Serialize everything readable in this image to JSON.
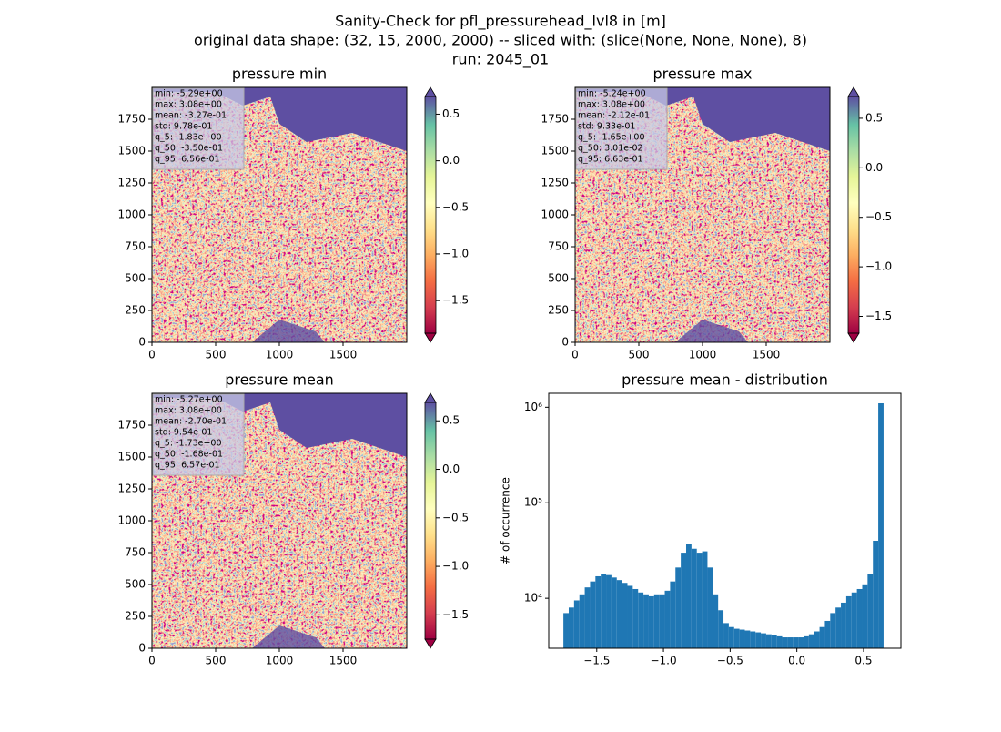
{
  "title": [
    "Sanity-Check for pfl_pressurehead_lvl8 in [m]",
    "original data shape: (32, 15, 2000, 2000) -- sliced with: (slice(None, None, None), 8)",
    "run: 2045_01"
  ],
  "chart_data": [
    {
      "type": "image",
      "title": "pressure min",
      "xlim": [
        0,
        2000
      ],
      "ylim": [
        0,
        2000
      ],
      "xticks": [
        0,
        500,
        1000,
        1500
      ],
      "yticks": [
        0,
        250,
        500,
        750,
        1000,
        1250,
        1500,
        1750
      ],
      "stats": [
        "min: -5.29e+00",
        "max: 3.08e+00",
        "mean: -3.27e-01",
        "std: 9.78e-01",
        "q_5: -1.83e+00",
        "q_50: -3.50e-01",
        "q_95: 6.56e-01"
      ],
      "clim": [
        -1.85,
        0.69
      ],
      "cticks": [
        0.5,
        {
          "value": 0,
          "label": "0.0"
        },
        {
          "value": -0.5,
          "label": "−0.5"
        },
        {
          "value": -1,
          "label": "−1.0"
        },
        {
          "value": -1.5,
          "label": "−1.5"
        }
      ]
    },
    {
      "type": "image",
      "title": "pressure max",
      "xlim": [
        0,
        2000
      ],
      "ylim": [
        0,
        2000
      ],
      "xticks": [
        0,
        500,
        1000,
        1500
      ],
      "yticks": [
        0,
        250,
        500,
        750,
        1000,
        1250,
        1500,
        1750
      ],
      "stats": [
        "min: -5.24e+00",
        "max: 3.08e+00",
        "mean: -2.12e-01",
        "std: 9.33e-01",
        "q_5: -1.65e+00",
        "q_50: 3.01e-02",
        "q_95: 6.63e-01"
      ],
      "clim": [
        -1.67,
        0.72
      ],
      "cticks": [
        0.5,
        {
          "value": 0,
          "label": "0.0"
        },
        {
          "value": -0.5,
          "label": "−0.5"
        },
        {
          "value": -1,
          "label": "−1.0"
        },
        {
          "value": -1.5,
          "label": "−1.5"
        }
      ]
    },
    {
      "type": "image",
      "title": "pressure mean",
      "xlim": [
        0,
        2000
      ],
      "ylim": [
        0,
        2000
      ],
      "xticks": [
        0,
        500,
        1000,
        1500
      ],
      "yticks": [
        0,
        250,
        500,
        750,
        1000,
        1250,
        1500,
        1750
      ],
      "stats": [
        "min: -5.27e+00",
        "max: 3.08e+00",
        "mean: -2.70e-01",
        "std: 9.54e-01",
        "q_5: -1.73e+00",
        "q_50: -1.68e-01",
        "q_95: 6.57e-01"
      ],
      "clim": [
        -1.75,
        0.69
      ],
      "cticks": [
        0.5,
        {
          "value": 0,
          "label": "0.0"
        },
        {
          "value": -0.5,
          "label": "−0.5"
        },
        {
          "value": -1,
          "label": "−1.0"
        },
        {
          "value": -1.5,
          "label": "−1.5"
        }
      ]
    },
    {
      "type": "histogram",
      "title": "pressure mean - distribution",
      "ylabel": "# of occurrence",
      "color": "#1f77b4",
      "log_scale": true,
      "bins": [
        -1.75,
        -1.71,
        -1.67,
        -1.63,
        -1.59,
        -1.55,
        -1.51,
        -1.47,
        -1.43,
        -1.39,
        -1.35,
        -1.31,
        -1.27,
        -1.23,
        -1.19,
        -1.15,
        -1.11,
        -1.07,
        -1.03,
        -0.99,
        -0.95,
        -0.91,
        -0.87,
        -0.83,
        -0.79,
        -0.75,
        -0.71,
        -0.67,
        -0.63,
        -0.59,
        -0.55,
        -0.51,
        -0.47,
        -0.43,
        -0.39,
        -0.35,
        -0.31,
        -0.27,
        -0.23,
        -0.19,
        -0.15,
        -0.11,
        -0.07,
        -0.03,
        0.01,
        0.05,
        0.09,
        0.13,
        0.17,
        0.21,
        0.25,
        0.29,
        0.33,
        0.37,
        0.41,
        0.45,
        0.49,
        0.53,
        0.57,
        0.61,
        0.65
      ],
      "values": [
        7000,
        8000,
        9500,
        11000,
        13000,
        15000,
        17000,
        18000,
        17500,
        16500,
        15500,
        14500,
        13500,
        12500,
        11500,
        11000,
        10500,
        11000,
        11000,
        12000,
        15000,
        21000,
        30000,
        37000,
        33000,
        30000,
        31000,
        21000,
        11000,
        7500,
        5500,
        5000,
        4800,
        4700,
        4600,
        4500,
        4400,
        4300,
        4200,
        4100,
        4000,
        3900,
        3900,
        3900,
        3900,
        4000,
        4200,
        4500,
        5000,
        5800,
        7000,
        8000,
        9000,
        10500,
        11500,
        12500,
        14000,
        18000,
        40000,
        1100000
      ],
      "xlim": [
        -1.86,
        0.78
      ],
      "ylim": [
        3000,
        1400000
      ],
      "xticks": [
        {
          "value": -1.5,
          "label": "−1.5"
        },
        {
          "value": -1,
          "label": "−1.0"
        },
        {
          "value": -0.5,
          "label": "−0.5"
        },
        {
          "value": 0,
          "label": "0.0"
        },
        0.5
      ],
      "yticks": [
        {
          "value": 10000,
          "label": "10⁴"
        },
        {
          "value": 100000,
          "label": "10⁵"
        },
        {
          "value": 1000000,
          "label": "10⁶"
        }
      ]
    }
  ]
}
